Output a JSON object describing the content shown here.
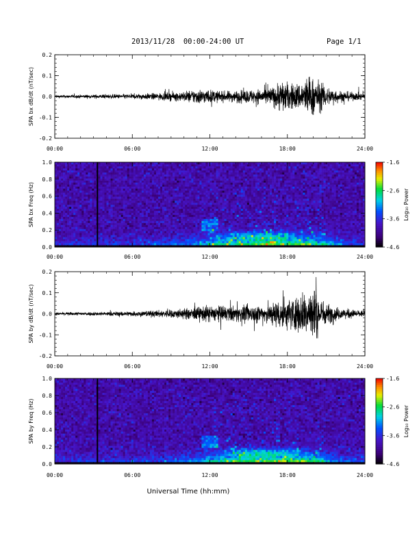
{
  "header": {
    "title": "2013/11/28  00:00-24:00 UT",
    "page": "Page 1/1"
  },
  "chart_data": [
    {
      "type": "line",
      "id": "bx-dbdt",
      "ylabel": "SPA bx dB/dt (nT/sec)",
      "ylim": [
        -0.2,
        0.2
      ],
      "yticks": [
        "0.2",
        "0.1",
        "0.0",
        "-0.1",
        "-0.2"
      ],
      "yticks_values": [
        0.2,
        0.1,
        0.0,
        -0.1,
        -0.2
      ],
      "xlim_hours": [
        0,
        24
      ],
      "xticks": [
        "00:00",
        "06:00",
        "12:00",
        "18:00",
        "24:00"
      ],
      "envelope_hours": [
        0,
        2,
        4,
        6,
        8,
        10,
        11,
        12,
        13,
        14,
        15,
        16,
        17,
        17.5,
        18,
        19,
        19.5,
        20,
        20.5,
        21,
        22,
        23,
        24
      ],
      "envelope_amplitude": [
        0.008,
        0.01,
        0.012,
        0.015,
        0.02,
        0.03,
        0.045,
        0.04,
        0.03,
        0.035,
        0.04,
        0.045,
        0.06,
        0.1,
        0.08,
        0.08,
        0.12,
        0.11,
        0.09,
        0.06,
        0.035,
        0.025,
        0.02
      ]
    },
    {
      "type": "heatmap",
      "id": "bx-freq",
      "ylabel": "SPA bx Freq (Hz)",
      "ylim": [
        0.0,
        1.0
      ],
      "yticks": [
        "1.0",
        "0.8",
        "0.6",
        "0.4",
        "0.2",
        "0.0"
      ],
      "yticks_values": [
        1.0,
        0.8,
        0.6,
        0.4,
        0.2,
        0.0
      ],
      "xlim_hours": [
        0,
        24
      ],
      "xticks": [
        "00:00",
        "06:00",
        "12:00",
        "18:00",
        "24:00"
      ],
      "colorbar_label": "Log₁₀ Power",
      "colorbar_ticks": [
        "-1.6",
        "-2.6",
        "-3.6",
        "-4.6"
      ],
      "colorbar_range": [
        -4.6,
        -1.6
      ],
      "gap_hour": 3.3
    },
    {
      "type": "line",
      "id": "by-dbdt",
      "ylabel": "SPA by dB/dt (nT/sec)",
      "ylim": [
        -0.2,
        0.2
      ],
      "yticks": [
        "0.2",
        "0.1",
        "0.0",
        "-0.1",
        "-0.2"
      ],
      "yticks_values": [
        0.2,
        0.1,
        0.0,
        -0.1,
        -0.2
      ],
      "xlim_hours": [
        0,
        24
      ],
      "xticks": [
        "00:00",
        "06:00",
        "12:00",
        "18:00",
        "24:00"
      ],
      "envelope_hours": [
        0,
        2,
        4,
        6,
        8,
        10,
        11,
        12,
        13,
        14,
        15,
        16,
        17,
        17.5,
        18,
        19,
        19.5,
        20,
        20.5,
        21,
        22,
        23,
        24
      ],
      "envelope_amplitude": [
        0.008,
        0.01,
        0.012,
        0.015,
        0.02,
        0.03,
        0.04,
        0.05,
        0.045,
        0.045,
        0.05,
        0.055,
        0.07,
        0.1,
        0.09,
        0.11,
        0.15,
        0.16,
        0.1,
        0.06,
        0.035,
        0.025,
        0.02
      ]
    },
    {
      "type": "heatmap",
      "id": "by-freq",
      "ylabel": "SPA by Freq (Hz)",
      "ylim": [
        0.0,
        1.0
      ],
      "yticks": [
        "1.0",
        "0.8",
        "0.6",
        "0.4",
        "0.2",
        "0.0"
      ],
      "yticks_values": [
        1.0,
        0.8,
        0.6,
        0.4,
        0.2,
        0.0
      ],
      "xlim_hours": [
        0,
        24
      ],
      "xticks": [
        "00:00",
        "06:00",
        "12:00",
        "18:00",
        "24:00"
      ],
      "colorbar_label": "Log₁₀ Power",
      "colorbar_ticks": [
        "-1.6",
        "-2.6",
        "-3.6",
        "-4.6"
      ],
      "colorbar_range": [
        -4.6,
        -1.6
      ],
      "gap_hour": 3.3
    }
  ],
  "xaxis": {
    "label": "Universal Time (hh:mm)"
  }
}
